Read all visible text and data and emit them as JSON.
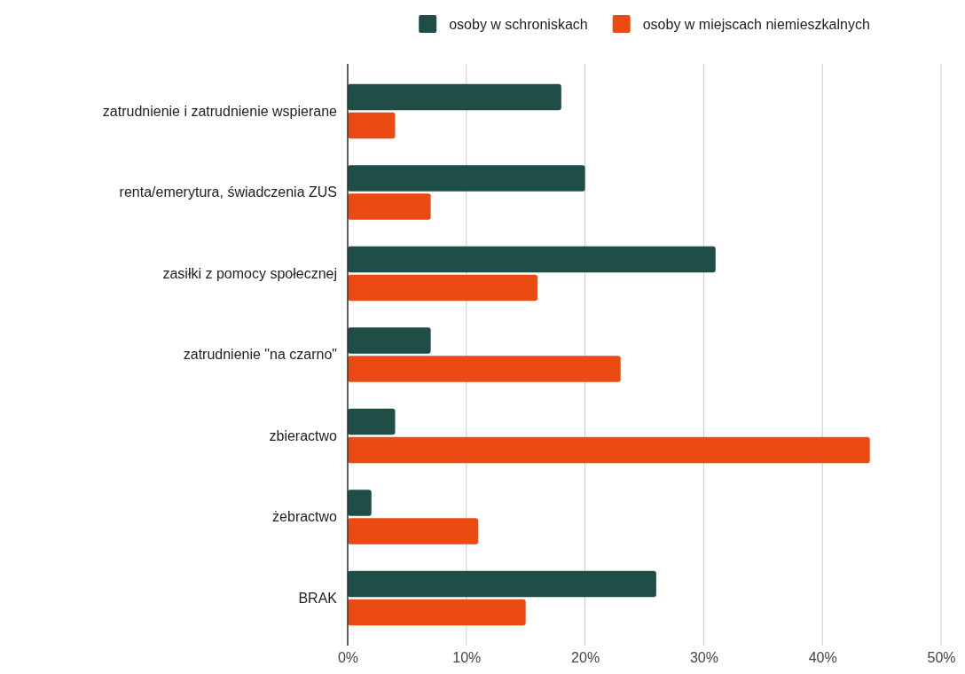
{
  "chart_data": {
    "type": "bar",
    "orientation": "horizontal",
    "categories": [
      "zatrudnienie i zatrudnienie wspierane",
      "renta/emerytura, świadczenia ZUS",
      "zasiłki z pomocy społecznej",
      "zatrudnienie \"na czarno\"",
      "zbieractwo",
      "żebractwo",
      "BRAK"
    ],
    "series": [
      {
        "name": "osoby w schroniskach",
        "color": "#1f4e46",
        "values": [
          18,
          20,
          31,
          7,
          4,
          2,
          26
        ]
      },
      {
        "name": "osoby w miejscach niemieszkalnych",
        "color": "#eb4a12",
        "values": [
          4,
          7,
          16,
          23,
          44,
          11,
          15
        ]
      }
    ],
    "xlim": [
      0,
      50
    ],
    "xticks": [
      {
        "value": 0,
        "label": "0%"
      },
      {
        "value": 10,
        "label": "10%"
      },
      {
        "value": 20,
        "label": "20%"
      },
      {
        "value": 30,
        "label": "30%"
      },
      {
        "value": 40,
        "label": "40%"
      },
      {
        "value": 50,
        "label": "50%"
      }
    ],
    "grid": "x",
    "legend": "top"
  }
}
